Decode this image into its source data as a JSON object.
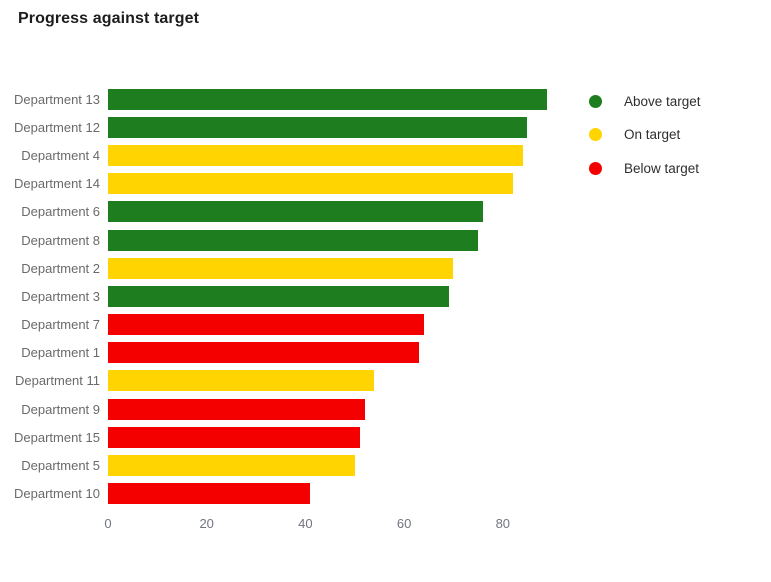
{
  "header": {
    "title": "Progress against target"
  },
  "colors": {
    "above": "#1e7d1e",
    "on": "#ffd400",
    "below": "#f40000"
  },
  "legend": {
    "position": "right",
    "items": [
      {
        "label": "Above target",
        "status": "above"
      },
      {
        "label": "On target",
        "status": "on"
      },
      {
        "label": "Below target",
        "status": "below"
      }
    ]
  },
  "chart_data": {
    "type": "bar",
    "orientation": "horizontal",
    "title": "Progress against target",
    "categories": [
      "Department 13",
      "Department 12",
      "Department 4",
      "Department 14",
      "Department 6",
      "Department 8",
      "Department 2",
      "Department 3",
      "Department 7",
      "Department 1",
      "Department 11",
      "Department 9",
      "Department 15",
      "Department 5",
      "Department 10"
    ],
    "values": [
      89,
      85,
      84,
      82,
      76,
      75,
      70,
      69,
      64,
      63,
      54,
      52,
      51,
      50,
      41
    ],
    "statuses": [
      "above",
      "above",
      "on",
      "on",
      "above",
      "above",
      "on",
      "above",
      "below",
      "below",
      "on",
      "below",
      "below",
      "on",
      "below"
    ],
    "series": [
      {
        "name": "Above target",
        "color": "#1e7d1e",
        "categories": [
          "Department 13",
          "Department 12",
          "Department 6",
          "Department 8",
          "Department 3"
        ],
        "values": [
          89,
          85,
          76,
          75,
          69
        ]
      },
      {
        "name": "On target",
        "color": "#ffd400",
        "categories": [
          "Department 4",
          "Department 14",
          "Department 2",
          "Department 11",
          "Department 5"
        ],
        "values": [
          84,
          82,
          70,
          54,
          50
        ]
      },
      {
        "name": "Below target",
        "color": "#f40000",
        "categories": [
          "Department 7",
          "Department 1",
          "Department 9",
          "Department 15",
          "Department 10"
        ],
        "values": [
          64,
          63,
          52,
          51,
          41
        ]
      }
    ],
    "xlabel": "",
    "ylabel": "",
    "xlim": [
      0,
      89
    ],
    "xticks": [
      0,
      20,
      40,
      60,
      80
    ],
    "grid": false,
    "legend_position": "right"
  }
}
